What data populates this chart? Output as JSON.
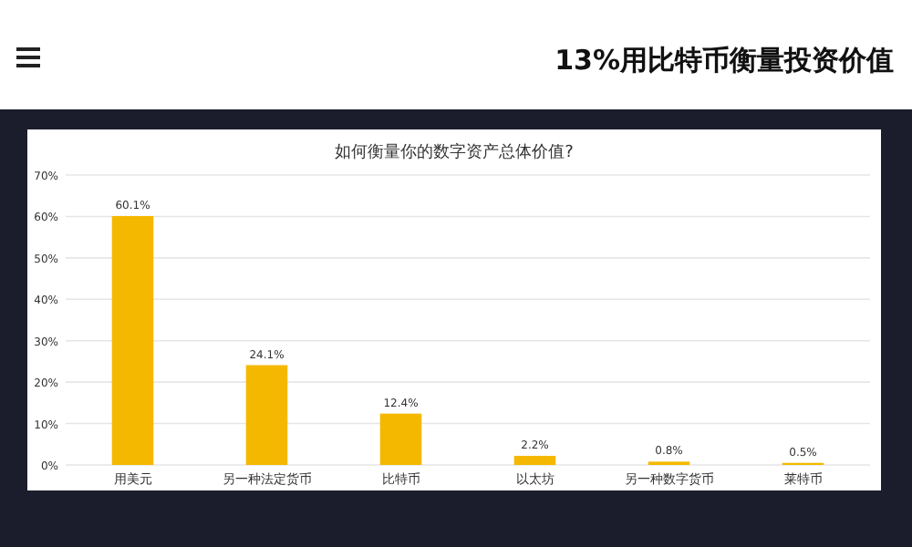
{
  "chart_data": {
    "type": "bar",
    "title": "如何衡量你的数字资产总体价值?",
    "annotations": [
      "13%用比特币衡量投资价值"
    ],
    "categories": [
      "用美元",
      "另一种法定货币",
      "比特币",
      "以太坊",
      "另一种数字货币",
      "莱特币"
    ],
    "values": [
      60.1,
      24.1,
      12.4,
      2.2,
      0.8,
      0.5
    ],
    "color": "#f5b800",
    "value_labels": [
      "60.1%",
      "24.1%",
      "12.4%",
      "2.2%",
      "0.8%",
      "0.5%"
    ],
    "ylim": [
      0,
      70
    ],
    "yticks": [
      {
        "value": 0,
        "label": "0%"
      },
      {
        "value": 10,
        "label": "10%"
      },
      {
        "value": 20,
        "label": "20%"
      },
      {
        "value": 30,
        "label": "30%"
      },
      {
        "value": 40,
        "label": "40%"
      },
      {
        "value": 50,
        "label": "50%"
      },
      {
        "value": 60,
        "label": "60%"
      },
      {
        "value": 70,
        "label": "70%"
      }
    ],
    "grid": "y"
  }
}
